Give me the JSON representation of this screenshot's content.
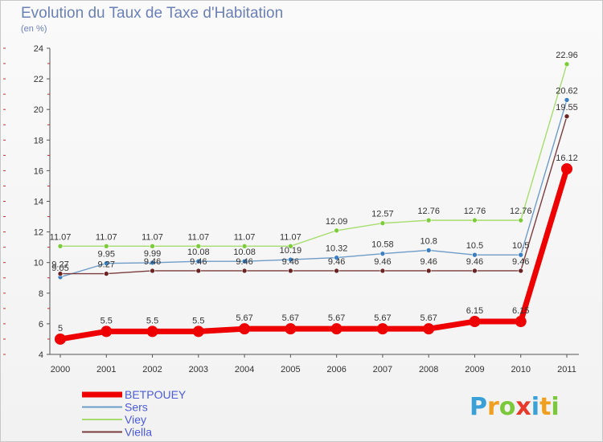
{
  "chart_data": {
    "type": "line",
    "title": "Evolution du Taux de Taxe d'Habitation",
    "subtitle": "(en %)",
    "xlabel": "",
    "ylabel": "",
    "categories": [
      "2000",
      "2001",
      "2002",
      "2003",
      "2004",
      "2005",
      "2006",
      "2007",
      "2008",
      "2009",
      "2010",
      "2011"
    ],
    "ylim": [
      4,
      24
    ],
    "yticks": [
      "4",
      "6",
      "8",
      "10",
      "12",
      "14",
      "16",
      "18",
      "20",
      "22",
      "24"
    ],
    "grid": false,
    "legend_position": "bottom-left",
    "series": [
      {
        "name": "BETPOUEY",
        "color": "#ee0000",
        "marker_color": "#ee0000",
        "emphasis": true,
        "values": [
          5,
          5.5,
          5.5,
          5.5,
          5.67,
          5.67,
          5.67,
          5.67,
          5.67,
          6.15,
          6.15,
          16.12
        ],
        "labels": [
          "5",
          "5.5",
          "5.5",
          "5.5",
          "5.67",
          "5.67",
          "5.67",
          "5.67",
          "5.67",
          "6.15",
          "6.15",
          "16.12"
        ]
      },
      {
        "name": "Sers",
        "color": "#6e9cc9",
        "marker_color": "#3a7fc1",
        "emphasis": false,
        "values": [
          9.05,
          9.95,
          9.99,
          10.08,
          10.08,
          10.19,
          10.32,
          10.58,
          10.8,
          10.5,
          10.5,
          20.62
        ],
        "labels": [
          "9.05",
          "9.95",
          "9.99",
          "10.08",
          "10.08",
          "10.19",
          "10.32",
          "10.58",
          "10.8",
          "10.5",
          "10.5",
          "20.62"
        ]
      },
      {
        "name": "Viey",
        "color": "#a6dd6e",
        "marker_color": "#7ccc3c",
        "emphasis": false,
        "values": [
          11.07,
          11.07,
          11.07,
          11.07,
          11.07,
          11.07,
          12.09,
          12.57,
          12.76,
          12.76,
          12.76,
          22.96
        ],
        "labels": [
          "11.07",
          "11.07",
          "11.07",
          "11.07",
          "11.07",
          "11.07",
          "12.09",
          "12.57",
          "12.76",
          "12.76",
          "12.76",
          "22.96"
        ]
      },
      {
        "name": "Viella",
        "color": "#7a3c3c",
        "marker_color": "#6a2424",
        "emphasis": false,
        "values": [
          9.27,
          9.27,
          9.46,
          9.46,
          9.46,
          9.46,
          9.46,
          9.46,
          9.46,
          9.46,
          9.46,
          19.55
        ],
        "labels": [
          "9.27",
          "9.27",
          "9.46",
          "9.46",
          "9.46",
          "9.46",
          "9.46",
          "9.46",
          "9.46",
          "9.46",
          "9.46",
          "19.55"
        ]
      }
    ]
  },
  "brand": {
    "letters": [
      "P",
      "r",
      "o",
      "x",
      "i",
      "t",
      "i"
    ],
    "colors": [
      "#3aa0d8",
      "#f0a020",
      "#7cc83c",
      "#e83a2a",
      "#3aa0d8",
      "#f0a020",
      "#7cc83c"
    ]
  }
}
